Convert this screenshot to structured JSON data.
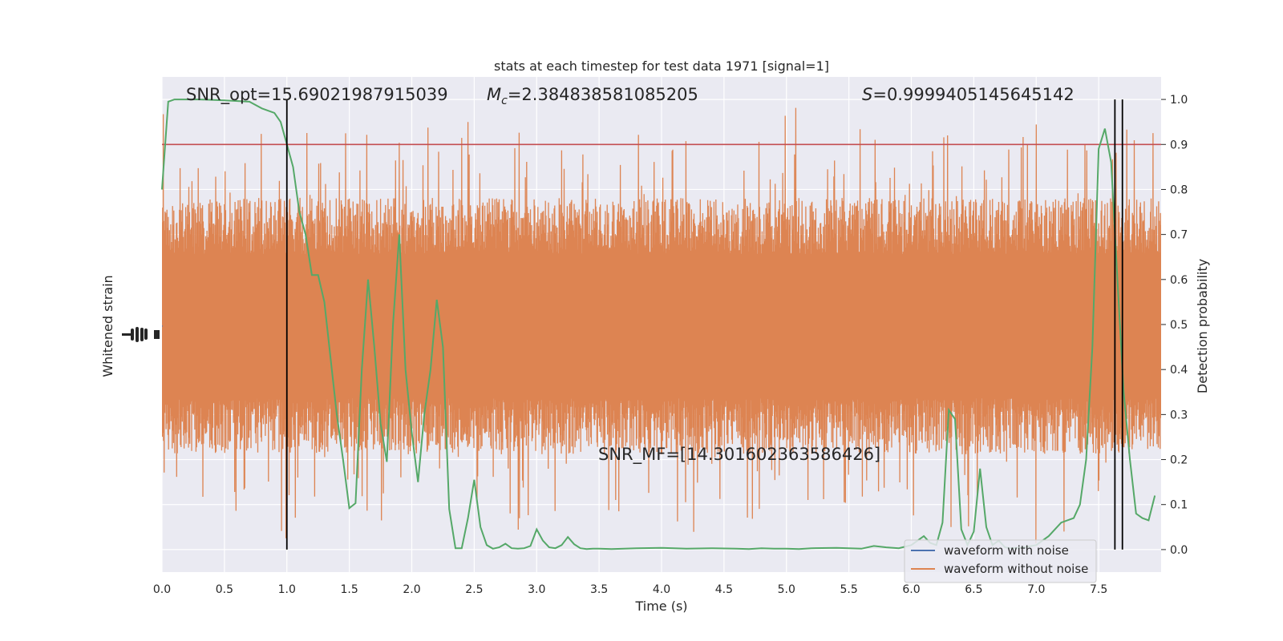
{
  "chart_data": {
    "type": "line",
    "title": "stats at each timestep for test data 1971 [signal=1]",
    "xlabel": "Time (s)",
    "ylabel_left": "Whitened strain",
    "ylabel_right": "Detection probability",
    "xlim": [
      0,
      8
    ],
    "ylim_right": [
      -0.05,
      1.05
    ],
    "x_ticks": [
      "0.0",
      "0.5",
      "1.0",
      "1.5",
      "2.0",
      "2.5",
      "3.0",
      "3.5",
      "4.0",
      "4.5",
      "5.0",
      "5.5",
      "6.0",
      "6.5",
      "7.0",
      "7.5"
    ],
    "y_right_ticks": [
      "0.0",
      "0.1",
      "0.2",
      "0.3",
      "0.4",
      "0.5",
      "0.6",
      "0.7",
      "0.8",
      "0.9",
      "1.0"
    ],
    "grid": true,
    "legend_position": "lower-right",
    "annotations": {
      "snr_opt": "SNR_opt=15.69021987915039",
      "mc_symbol": "M",
      "mc_subscript": "c",
      "mc_value": "=2.384838581085205",
      "s_symbol": "S",
      "s_value": "=0.9999405145645142",
      "snr_mf": "SNR_MF=[14.301602363586426]"
    },
    "threshold": 0.9,
    "vlines_x": [
      1.0,
      7.63,
      7.69
    ],
    "series": [
      {
        "name": "waveform with noise",
        "color": "#4c72b0"
      },
      {
        "name": "waveform without noise",
        "color": "#dd8452"
      },
      {
        "color": "#55a868",
        "x": [
          0.0,
          0.05,
          0.1,
          0.3,
          0.5,
          0.7,
          0.8,
          0.9,
          0.95,
          1.0,
          1.05,
          1.1,
          1.15,
          1.2,
          1.25,
          1.3,
          1.4,
          1.45,
          1.5,
          1.55,
          1.6,
          1.65,
          1.7,
          1.75,
          1.8,
          1.85,
          1.9,
          1.95,
          2.0,
          2.05,
          2.1,
          2.15,
          2.2,
          2.25,
          2.3,
          2.35,
          2.4,
          2.45,
          2.5,
          2.55,
          2.6,
          2.65,
          2.7,
          2.75,
          2.8,
          2.85,
          2.9,
          2.95,
          3.0,
          3.05,
          3.1,
          3.15,
          3.2,
          3.25,
          3.3,
          3.35,
          3.4,
          3.45,
          3.5,
          3.6,
          3.8,
          4.0,
          4.1,
          4.2,
          4.4,
          4.6,
          4.7,
          4.8,
          4.9,
          5.0,
          5.1,
          5.2,
          5.4,
          5.6,
          5.7,
          5.8,
          5.9,
          6.0,
          6.05,
          6.1,
          6.15,
          6.2,
          6.25,
          6.3,
          6.35,
          6.4,
          6.45,
          6.5,
          6.55,
          6.6,
          6.65,
          6.7,
          6.75,
          6.8,
          6.9,
          7.0,
          7.1,
          7.2,
          7.3,
          7.35,
          7.4,
          7.45,
          7.5,
          7.55,
          7.6,
          7.65,
          7.7,
          7.75,
          7.8,
          7.85,
          7.9,
          7.95
        ],
        "y": [
          0.8,
          0.995,
          1.0,
          1.0,
          0.998,
          0.995,
          0.98,
          0.97,
          0.95,
          0.9,
          0.85,
          0.75,
          0.7,
          0.61,
          0.61,
          0.55,
          0.3,
          0.2,
          0.092,
          0.103,
          0.4,
          0.6,
          0.45,
          0.28,
          0.195,
          0.5,
          0.7,
          0.4,
          0.26,
          0.15,
          0.3,
          0.4,
          0.555,
          0.45,
          0.09,
          0.003,
          0.003,
          0.07,
          0.155,
          0.05,
          0.01,
          0.002,
          0.005,
          0.013,
          0.003,
          0.002,
          0.003,
          0.008,
          0.045,
          0.02,
          0.005,
          0.003,
          0.01,
          0.028,
          0.012,
          0.003,
          0.001,
          0.002,
          0.002,
          0.001,
          0.003,
          0.004,
          0.003,
          0.002,
          0.003,
          0.002,
          0.001,
          0.003,
          0.002,
          0.002,
          0.001,
          0.003,
          0.004,
          0.002,
          0.008,
          0.005,
          0.003,
          0.01,
          0.02,
          0.03,
          0.015,
          0.01,
          0.06,
          0.31,
          0.29,
          0.045,
          0.01,
          0.04,
          0.18,
          0.05,
          0.01,
          0.02,
          0.005,
          0.003,
          0.005,
          0.01,
          0.03,
          0.06,
          0.07,
          0.1,
          0.2,
          0.45,
          0.89,
          0.935,
          0.86,
          0.6,
          0.35,
          0.2,
          0.08,
          0.07,
          0.065,
          0.12
        ]
      }
    ]
  },
  "legend": {
    "with_noise": "waveform with noise",
    "without_noise": "waveform without noise"
  }
}
